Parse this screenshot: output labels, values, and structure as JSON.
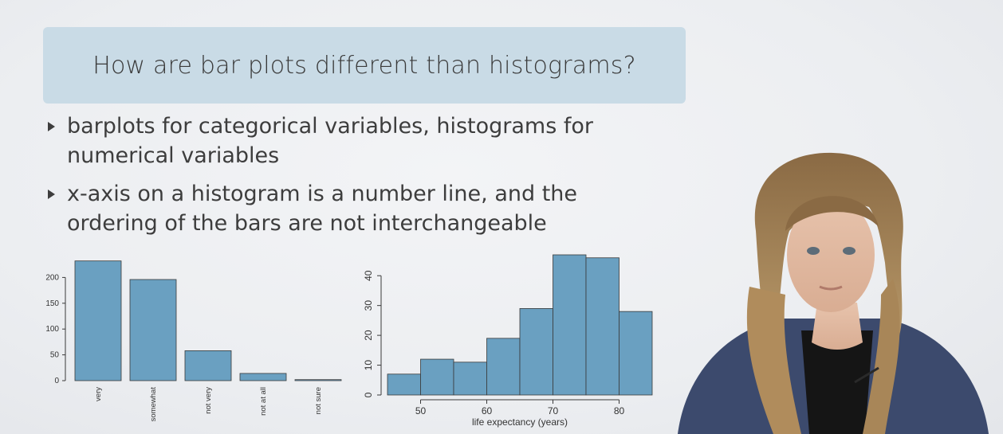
{
  "slide": {
    "title": "How are bar plots different than histograms?",
    "bullets": [
      "barplots for categorical variables, histograms for numerical variables",
      "x-axis on a histogram is a number line, and the ordering of the bars are not interchangeable"
    ]
  },
  "colors": {
    "title_bg": "#c9dbe6",
    "bar_fill": "#6aa0c1",
    "bar_stroke": "#3a3a3a",
    "text": "#3d3d3d"
  },
  "chart_data": [
    {
      "type": "bar",
      "categories": [
        "very",
        "somewhat",
        "not very",
        "not at all",
        "not sure"
      ],
      "values": [
        232,
        196,
        58,
        14,
        2
      ],
      "ylim": [
        0,
        250
      ],
      "yticks": [
        0,
        50,
        100,
        150,
        200
      ],
      "ytick_labels": [
        "0",
        "50",
        "100",
        "150",
        "200"
      ],
      "xlabel": "",
      "ylabel": "",
      "title": "",
      "grid": false
    },
    {
      "type": "bar",
      "bins": [
        [
          45,
          50
        ],
        [
          50,
          55
        ],
        [
          55,
          60
        ],
        [
          60,
          65
        ],
        [
          65,
          70
        ],
        [
          70,
          75
        ],
        [
          75,
          80
        ],
        [
          80,
          85
        ]
      ],
      "values": [
        7,
        12,
        11,
        19,
        29,
        47,
        46,
        28
      ],
      "xlim": [
        45,
        85
      ],
      "ylim": [
        0,
        47
      ],
      "xticks": [
        50,
        60,
        70,
        80
      ],
      "xtick_labels": [
        "50",
        "60",
        "70",
        "80"
      ],
      "yticks": [
        0,
        10,
        20,
        30,
        40
      ],
      "ytick_labels": [
        "0",
        "10",
        "20",
        "30",
        "40"
      ],
      "xlabel": "life expectancy (years)",
      "ylabel": "",
      "title": "",
      "grid": false
    }
  ]
}
